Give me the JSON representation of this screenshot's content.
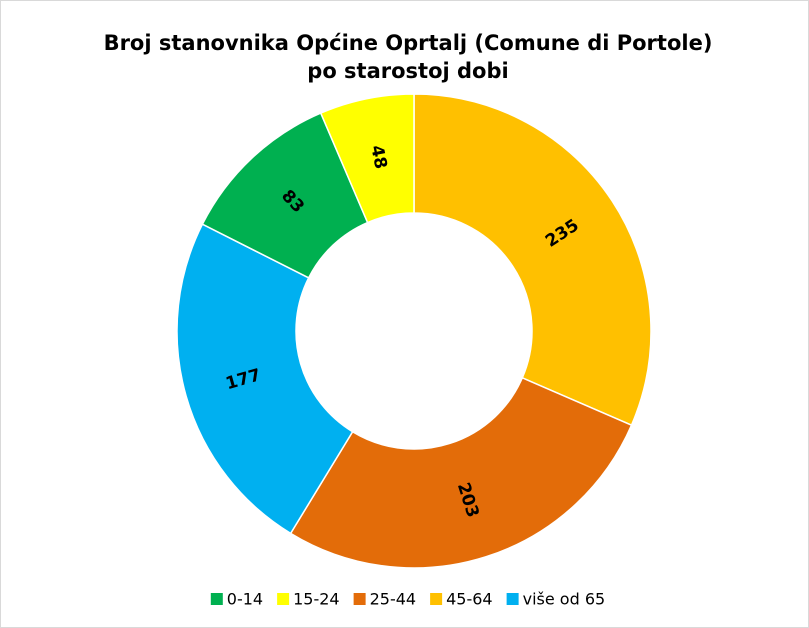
{
  "chart_data": {
    "type": "donut",
    "title": "Broj stanovnika Općine Oprtalj (Comune di Portole)",
    "subtitle": "po starostoj dobi",
    "series": [
      {
        "name": "0-14",
        "color": "#00b050",
        "values": [
          83
        ]
      },
      {
        "name": "15-24",
        "color": "#ffff00",
        "values": [
          48
        ]
      },
      {
        "name": "25-44",
        "color": "#e36c09",
        "values": [
          203
        ]
      },
      {
        "name": "45-64",
        "color": "#ffc000",
        "values": [
          235
        ]
      },
      {
        "name": "više od 65",
        "color": "#00b0f0",
        "values": [
          177
        ]
      }
    ],
    "legend": "bottom"
  }
}
